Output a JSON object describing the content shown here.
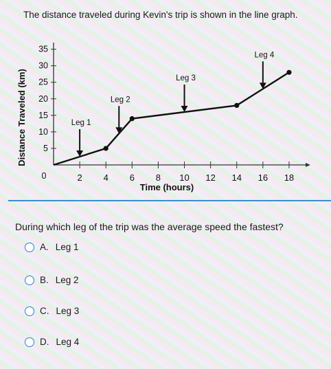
{
  "prompt": "The distance traveled during Kevin's trip is shown in the line graph.",
  "question": "During which leg of the trip was the average speed the fastest?",
  "choices": [
    {
      "letter": "A.",
      "label": "Leg 1"
    },
    {
      "letter": "B.",
      "label": "Leg 2"
    },
    {
      "letter": "C.",
      "label": "Leg 3"
    },
    {
      "letter": "D.",
      "label": "Leg 4"
    }
  ],
  "chart_data": {
    "type": "line",
    "xlabel": "Time (hours)",
    "ylabel": "Distance Traveled (km)",
    "xlim": [
      0,
      19
    ],
    "ylim": [
      0,
      37
    ],
    "x_ticks": [
      2,
      4,
      6,
      8,
      10,
      12,
      14,
      16,
      18
    ],
    "y_ticks": [
      5,
      10,
      15,
      20,
      25,
      30,
      35
    ],
    "origin_label": "0",
    "points": [
      [
        0,
        0
      ],
      [
        4,
        5
      ],
      [
        6,
        14
      ],
      [
        14,
        18
      ],
      [
        18,
        28
      ]
    ],
    "legs": [
      {
        "label": "Leg 1",
        "x": 2,
        "y": 2.5
      },
      {
        "label": "Leg 2",
        "x": 5,
        "y": 9.5
      },
      {
        "label": "Leg 3",
        "x": 10,
        "y": 16
      },
      {
        "label": "Leg 4",
        "x": 16,
        "y": 23
      }
    ],
    "line_color": "#111111"
  }
}
